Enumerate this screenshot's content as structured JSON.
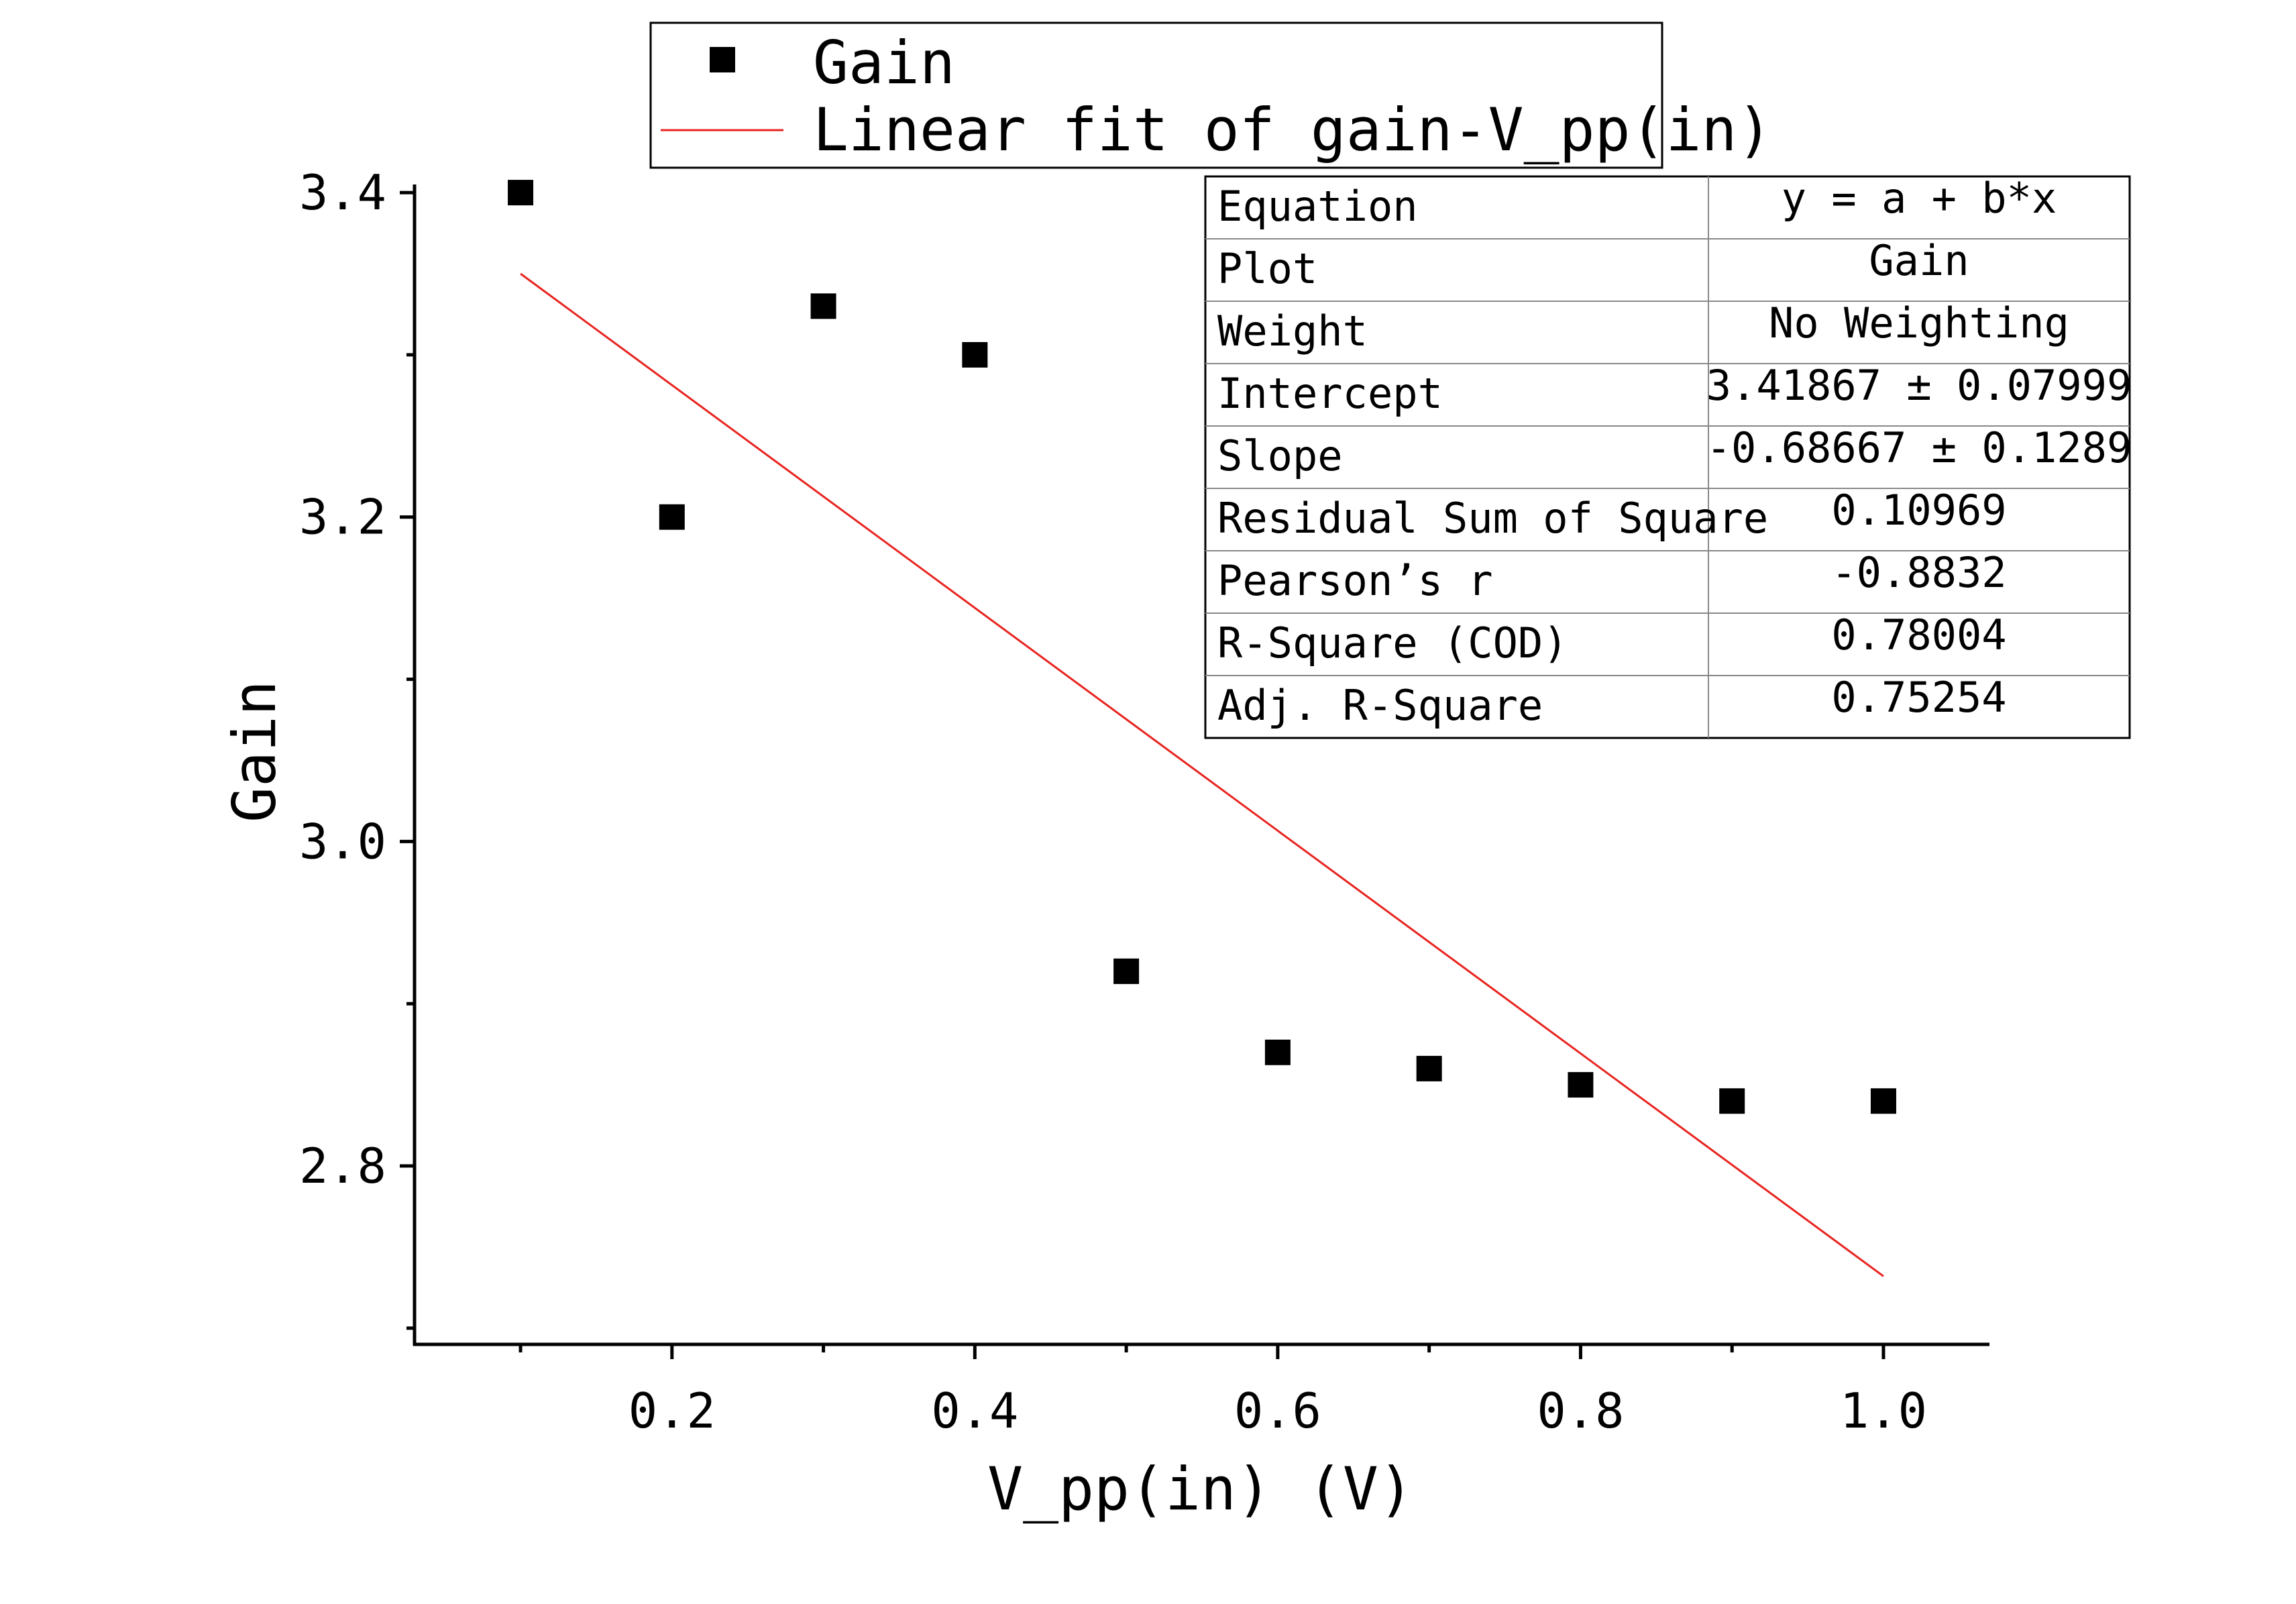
{
  "chart_data": {
    "type": "scatter",
    "title": "",
    "xlabel": "V_pp(in) (V)",
    "ylabel": "Gain",
    "xlim": [
      0.03,
      1.07
    ],
    "ylim": [
      2.69,
      3.405
    ],
    "x_ticks": [
      0.2,
      0.4,
      0.6,
      0.8,
      1.0
    ],
    "x_tick_labels": [
      "0.2",
      "0.4",
      "0.6",
      "0.8",
      "1.0"
    ],
    "x_minor_ticks": [
      0.1,
      0.3,
      0.5,
      0.7,
      0.9
    ],
    "y_ticks": [
      2.8,
      3.0,
      3.2,
      3.4
    ],
    "y_tick_labels": [
      "2.8",
      "3.0",
      "3.2",
      "3.4"
    ],
    "y_minor_ticks": [
      2.7,
      2.9,
      3.1,
      3.3
    ],
    "grid": false,
    "legend_position": "top-center",
    "series": [
      {
        "name": "Gain",
        "kind": "scatter",
        "marker": "square",
        "color": "#000000",
        "x": [
          0.1,
          0.2,
          0.3,
          0.4,
          0.5,
          0.6,
          0.7,
          0.8,
          0.9,
          1.0
        ],
        "y": [
          3.4,
          3.2,
          3.33,
          3.3,
          2.92,
          2.87,
          2.86,
          2.85,
          2.84,
          2.84
        ]
      },
      {
        "name": "Linear fit of gain-V_pp(in)",
        "kind": "line",
        "color": "#e8231f",
        "x": [
          0.1,
          1.0
        ],
        "y": [
          3.35,
          2.732
        ]
      }
    ],
    "fit_table": {
      "rows": [
        {
          "label": "Equation",
          "value": "y = a + b*x"
        },
        {
          "label": "Plot",
          "value": "Gain"
        },
        {
          "label": "Weight",
          "value": "No Weighting"
        },
        {
          "label": "Intercept",
          "value": "3.41867 ± 0.07999"
        },
        {
          "label": "Slope",
          "value": "-0.68667 ± 0.1289"
        },
        {
          "label": "Residual Sum of Square",
          "value": "0.10969"
        },
        {
          "label": "Pearson’s r",
          "value": "-0.8832"
        },
        {
          "label": "R-Square (COD)",
          "value": "0.78004"
        },
        {
          "label": "Adj. R-Square",
          "value": "0.75254"
        }
      ]
    }
  }
}
